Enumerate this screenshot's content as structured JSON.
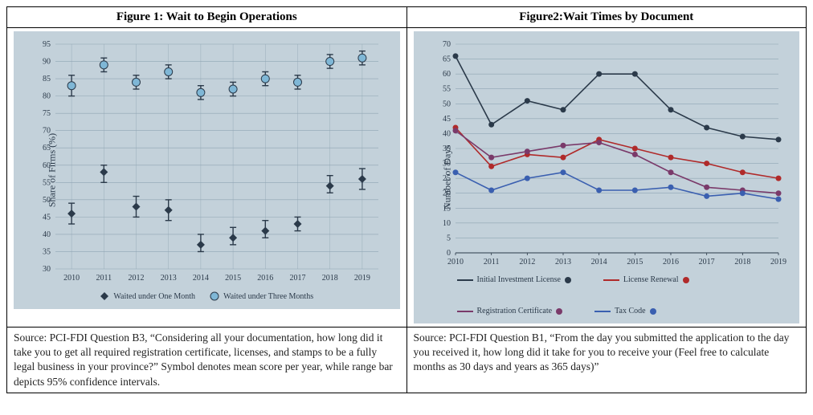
{
  "figure1": {
    "title": "Figure 1: Wait to Begin Operations",
    "type": "scatter-errorbar",
    "background_color": "#c3d1da",
    "plot_bg": "#c3d1da",
    "grid_color": "#8fa5b3",
    "ylabel": "Share of Firms (%)",
    "label_fontsize": 12,
    "years": [
      "2010",
      "2011",
      "2012",
      "2013",
      "2014",
      "2015",
      "2016",
      "2017",
      "2018",
      "2019"
    ],
    "ylim": [
      30,
      95
    ],
    "ytick_step": 5,
    "series": {
      "one_month": {
        "label": "Waited under One Month",
        "color": "#2b3a4a",
        "marker": "diamond",
        "mean": [
          46,
          58,
          48,
          47,
          37,
          39,
          41,
          43,
          54,
          56
        ],
        "low": [
          43,
          55,
          45,
          44,
          35,
          37,
          39,
          41,
          52,
          53
        ],
        "high": [
          49,
          60,
          51,
          50,
          40,
          42,
          44,
          45,
          57,
          59
        ]
      },
      "three_months": {
        "label": "Waited under Three Months",
        "color": "#7fb7d6",
        "stroke": "#2b3a4a",
        "marker": "circle",
        "mean": [
          83,
          89,
          84,
          87,
          81,
          82,
          85,
          84,
          90,
          91
        ],
        "low": [
          80,
          87,
          82,
          85,
          79,
          80,
          83,
          82,
          88,
          89
        ],
        "high": [
          86,
          91,
          86,
          89,
          83,
          84,
          87,
          86,
          92,
          93
        ]
      }
    },
    "source": "Source: PCI-FDI Question B3, “Considering all your documentation, how long did it take you to get all required registration certificate, licenses, and stamps to be a fully legal business in your province?” Symbol denotes mean score per year, while range bar depicts 95% confidence intervals."
  },
  "figure2": {
    "title": "Figure2:Wait Times by Document",
    "type": "line",
    "background_color": "#c3d1da",
    "grid_color": "#8fa5b3",
    "ylabel": "Number of Days",
    "label_fontsize": 12,
    "years": [
      "2010",
      "2011",
      "2012",
      "2013",
      "2014",
      "2015",
      "2016",
      "2017",
      "2018",
      "2019"
    ],
    "ylim": [
      0,
      70
    ],
    "ytick_step": 5,
    "series": {
      "initial": {
        "label": "Initial Investment License",
        "color": "#2b3a4a",
        "values": [
          66,
          43,
          51,
          48,
          60,
          60,
          48,
          42,
          39,
          38
        ]
      },
      "renewal": {
        "label": "License Renewal",
        "color": "#b02a2a",
        "values": [
          42,
          29,
          33,
          32,
          38,
          35,
          32,
          30,
          27,
          25
        ]
      },
      "registration": {
        "label": "Registration Certificate",
        "color": "#7a3a6a",
        "values": [
          41,
          32,
          34,
          36,
          37,
          33,
          27,
          22,
          21,
          20
        ]
      },
      "tax": {
        "label": "Tax Code",
        "color": "#3a5fb0",
        "values": [
          27,
          21,
          25,
          27,
          21,
          21,
          22,
          19,
          20,
          18
        ]
      }
    },
    "source": "Source: PCI-FDI Question B1, “From the day you submitted the application to the day you received it, how long did it take for you to receive your (Feel free to calculate months as 30 days and years as 365 days)”"
  }
}
